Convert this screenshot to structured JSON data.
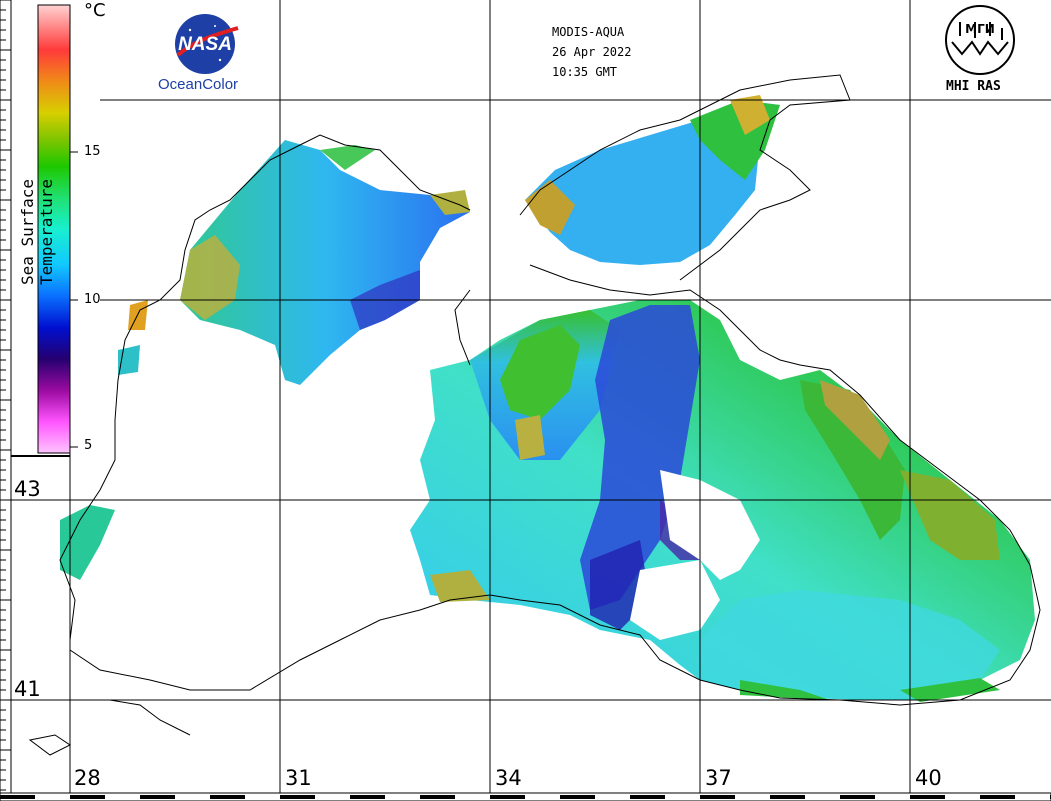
{
  "header": {
    "satellite": "MODIS-AQUA",
    "date": "26 Apr 2022",
    "time": "10:35 GMT"
  },
  "logos": {
    "left_wordmark": "NASA",
    "left_text": "OceanColor",
    "right_text": "MHI RAS",
    "right_wordmark": "МГИ"
  },
  "colorbar": {
    "title": "Sea Surface Temperature",
    "unit": "°C",
    "ticks": [
      "15",
      "10",
      "5"
    ],
    "range": [
      5,
      20
    ],
    "colors": [
      "#ffc4ff",
      "#ff54ff",
      "#9a0aa0",
      "#250070",
      "#0010d0",
      "#0a6fff",
      "#12c8ff",
      "#18f0d0",
      "#20e070",
      "#1ec800",
      "#7fc400",
      "#d8cf00",
      "#f08a18",
      "#ff3a3a",
      "#ffd2d2"
    ]
  },
  "grid": {
    "lon_labels": [
      "28",
      "31",
      "34",
      "37",
      "40"
    ],
    "lat_labels": [
      "43",
      "41"
    ]
  },
  "colors": {
    "land": "#ffffff",
    "coastline": "#000000",
    "cloud_mask": "#ffffff"
  }
}
